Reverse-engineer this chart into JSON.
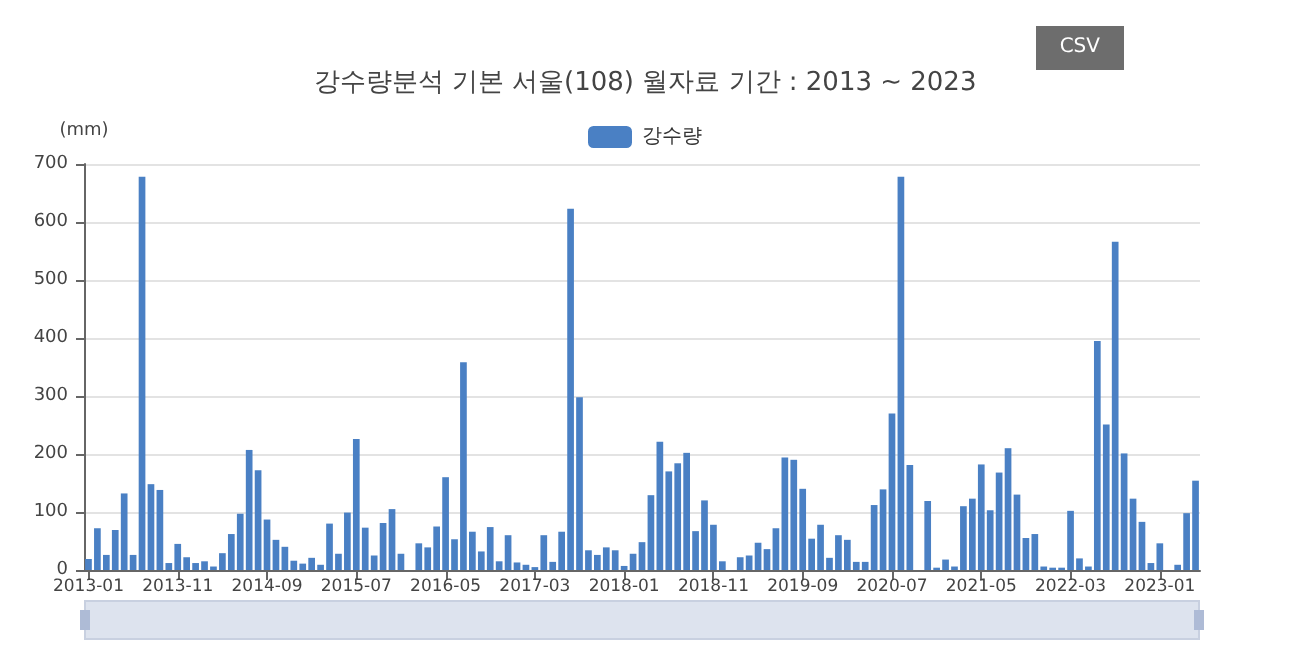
{
  "chart_data": {
    "type": "bar",
    "title": "강수량분석 기본 서울(108) 월자료 기간 : 2013 ~ 2023",
    "ylabel": "(mm)",
    "categories": [
      "2013-01",
      null,
      null,
      null,
      null,
      null,
      null,
      null,
      null,
      null,
      "2013-11",
      null,
      null,
      null,
      null,
      null,
      null,
      null,
      null,
      null,
      "2014-09",
      null,
      null,
      null,
      null,
      null,
      null,
      null,
      null,
      null,
      "2015-07",
      null,
      null,
      null,
      null,
      null,
      null,
      null,
      null,
      null,
      "2016-05",
      null,
      null,
      null,
      null,
      null,
      null,
      null,
      null,
      null,
      "2017-03",
      null,
      null,
      null,
      null,
      null,
      null,
      null,
      null,
      null,
      "2018-01",
      null,
      null,
      null,
      null,
      null,
      null,
      null,
      null,
      null,
      "2018-11",
      null,
      null,
      null,
      null,
      null,
      null,
      null,
      null,
      null,
      "2019-09",
      null,
      null,
      null,
      null,
      null,
      null,
      null,
      null,
      null,
      "2020-07",
      null,
      null,
      null,
      null,
      null,
      null,
      null,
      null,
      null,
      "2021-05",
      null,
      null,
      null,
      null,
      null,
      null,
      null,
      null,
      null,
      "2022-03",
      null,
      null,
      null,
      null,
      null,
      null,
      null,
      null,
      null,
      "2023-01",
      null,
      null,
      null,
      null
    ],
    "series": [
      {
        "name": "강수량",
        "color": "#4a80c4",
        "values": [
          19,
          72,
          26,
          69,
          132,
          26,
          678,
          148,
          138,
          12,
          45,
          22,
          12,
          15,
          6,
          29,
          62,
          97,
          207,
          172,
          87,
          52,
          40,
          16,
          11,
          21,
          9,
          80,
          28,
          99,
          226,
          73,
          25,
          81,
          105,
          28,
          0,
          46,
          39,
          75,
          160,
          53,
          358,
          66,
          32,
          74,
          15,
          60,
          13,
          9,
          5,
          60,
          14,
          66,
          623,
          298,
          34,
          26,
          39,
          34,
          7,
          28,
          48,
          129,
          221,
          170,
          184,
          202,
          67,
          120,
          78,
          15,
          null,
          22,
          25,
          47,
          36,
          72,
          194,
          190,
          140,
          54,
          78,
          21,
          60,
          52,
          14,
          14,
          112,
          139,
          270,
          678,
          181,
          null,
          119,
          4,
          18,
          6,
          110,
          123,
          182,
          103,
          168,
          210,
          130,
          55,
          62,
          6,
          4,
          4,
          102,
          20,
          6,
          395,
          251,
          566,
          201,
          123,
          83,
          12,
          46,
          0,
          9,
          98,
          154
        ]
      }
    ],
    "ylim": [
      0,
      700
    ],
    "yticks": [
      0,
      100,
      200,
      300,
      400,
      500,
      600,
      700
    ],
    "grid": "y",
    "legend": "top",
    "annotations": [
      "CSV"
    ]
  }
}
